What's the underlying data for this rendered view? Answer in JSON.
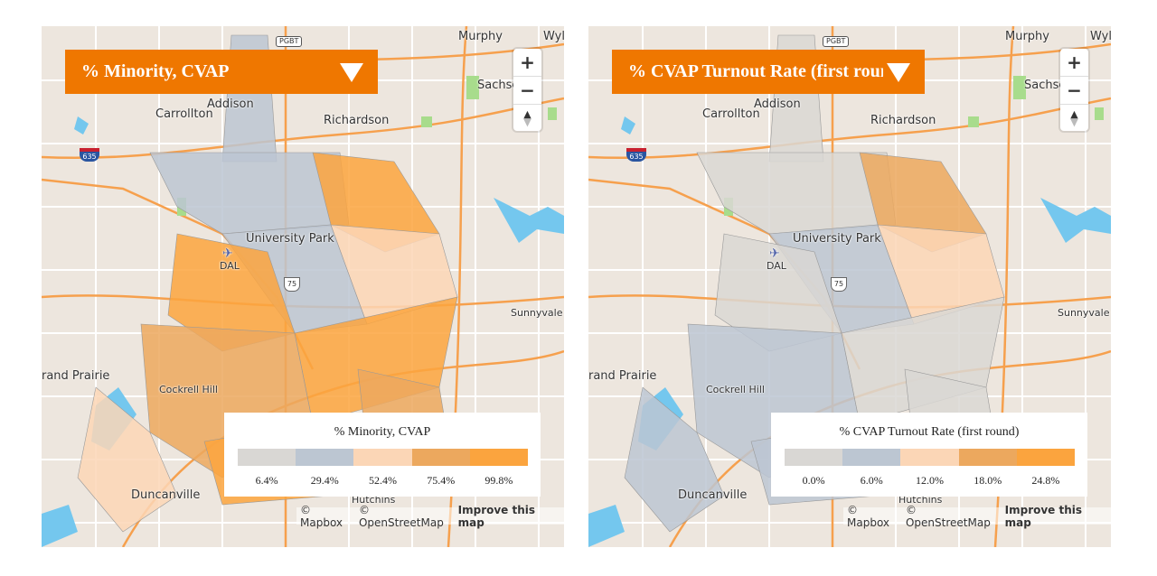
{
  "panels": [
    {
      "header_title": "% Minority, CVAP",
      "legend": {
        "title": "% Minority, CVAP",
        "colors": [
          "#d9d7d4",
          "#bcc6d2",
          "#fbd6b6",
          "#eca85e",
          "#fba43e"
        ],
        "ticks": [
          "6.4%",
          "29.4%",
          "52.4%",
          "75.4%",
          "99.8%"
        ]
      }
    },
    {
      "header_title": "% CVAP Turnout Rate (first round)",
      "legend": {
        "title": "% CVAP Turnout Rate (first round)",
        "colors": [
          "#d9d7d4",
          "#bcc6d2",
          "#fbd6b6",
          "#eca85e",
          "#fba43e"
        ],
        "ticks": [
          "0.0%",
          "6.0%",
          "12.0%",
          "18.0%",
          "24.8%"
        ]
      }
    }
  ],
  "map_labels": {
    "murphy": "Murphy",
    "wylie": "Wyli",
    "sachse": "Sachse",
    "addison": "Addison",
    "carrollton": "Carrollton",
    "richardson": "Richardson",
    "university_park": "University Park",
    "dal": "DAL",
    "sunnyvale": "Sunnyvale",
    "grand_prairie": "rand Prairie",
    "cockrell_hill": "Cockrell Hill",
    "duncanville": "Duncanville",
    "hutchins": "Hutchins",
    "i635": "635",
    "us75": "75",
    "pgbt": "PGBT"
  },
  "zoom_controls": {
    "zoom_in": "+",
    "zoom_out": "−",
    "compass": "▲"
  },
  "attribution": {
    "mapbox": "© Mapbox",
    "osm": "© OpenStreetMap",
    "improve": "Improve this map"
  }
}
